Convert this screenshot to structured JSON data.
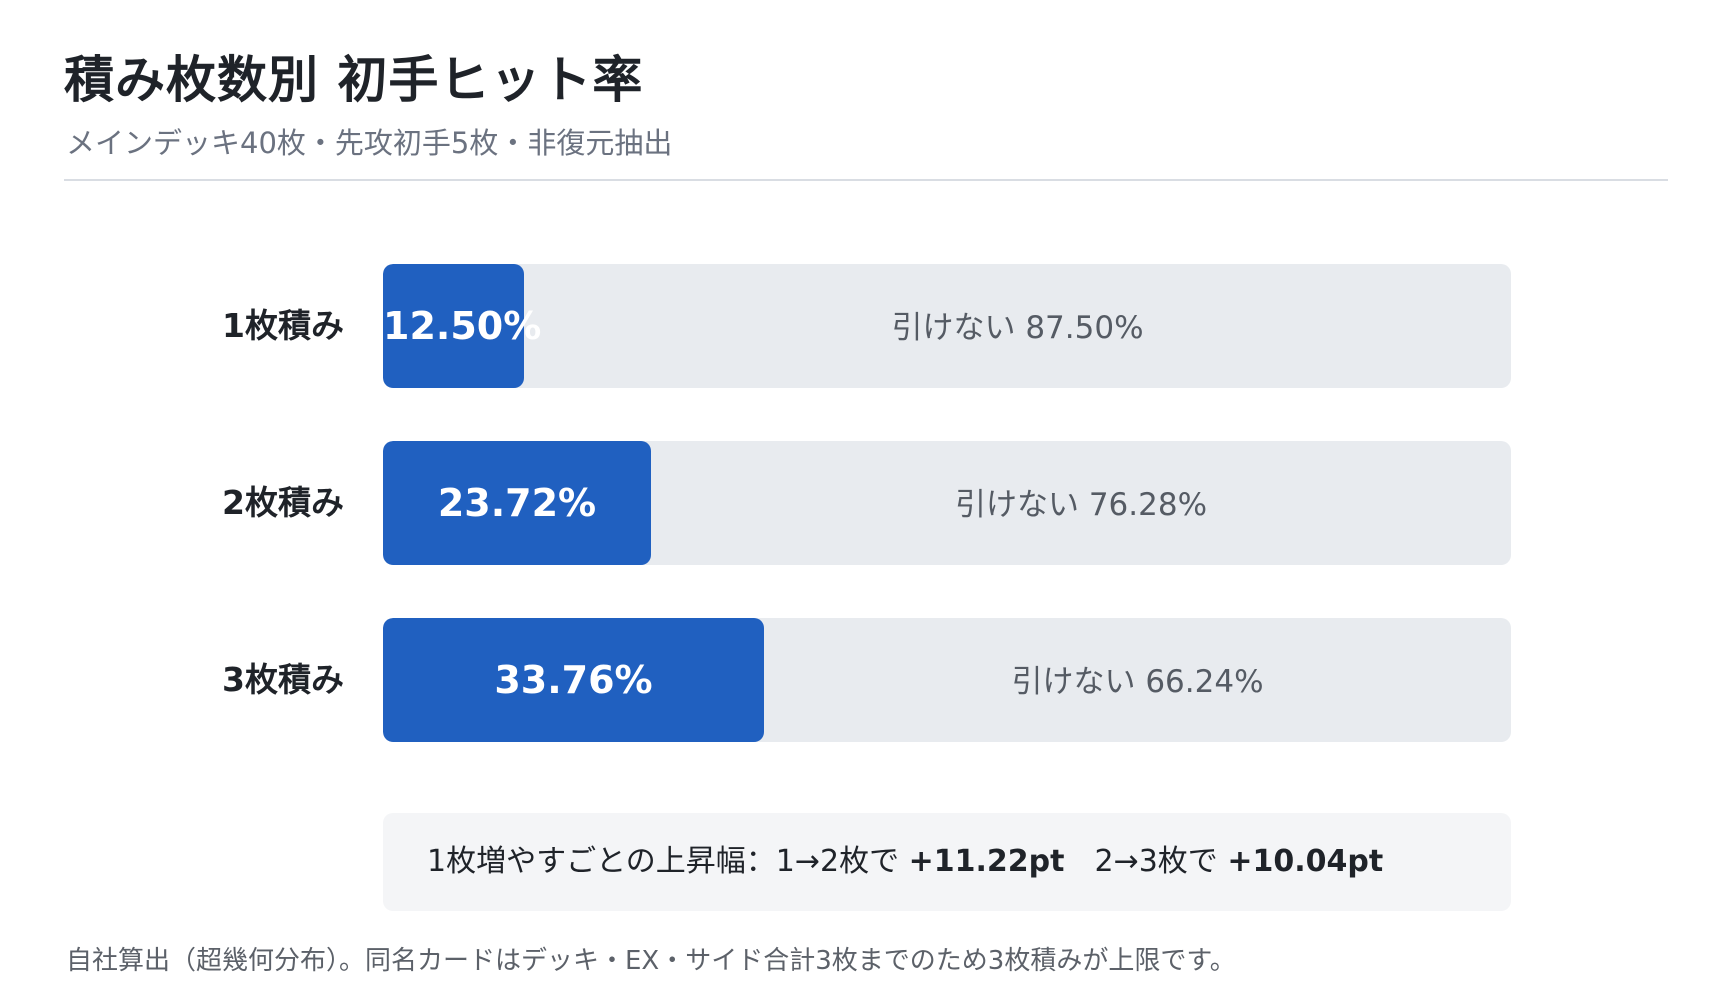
{
  "title": "積み枚数別 初手ヒット率",
  "subtitle": "メインデッキ40枚・先攻初手5枚・非復元抽出",
  "colors": {
    "hit": "#2060c0",
    "miss": "#e8ebef"
  },
  "chart_data": {
    "type": "bar",
    "orientation": "horizontal",
    "stacked": true,
    "xlim": [
      0,
      100
    ],
    "categories": [
      "1枚積み",
      "2枚積み",
      "3枚積み"
    ],
    "series": [
      {
        "values": [
          12.5,
          23.72,
          33.76
        ]
      },
      {
        "name": "引けない",
        "values": [
          87.5,
          76.28,
          66.24
        ]
      }
    ],
    "hit_labels": [
      "12.50%",
      "23.72%",
      "33.76%"
    ],
    "miss_labels": [
      "引けない 87.50%",
      "引けない 76.28%",
      "引けない 66.24%"
    ]
  },
  "summary": {
    "prefix": "1枚増やすごとの上昇幅：1→2枚で ",
    "delta1": "+11.22pt",
    "middle": "　2→3枚で ",
    "delta2": "+10.04pt"
  },
  "footnote": "自社算出（超幾何分布）。同名カードはデッキ・EX・サイド合計3枚までのため3枚積みが上限です。"
}
